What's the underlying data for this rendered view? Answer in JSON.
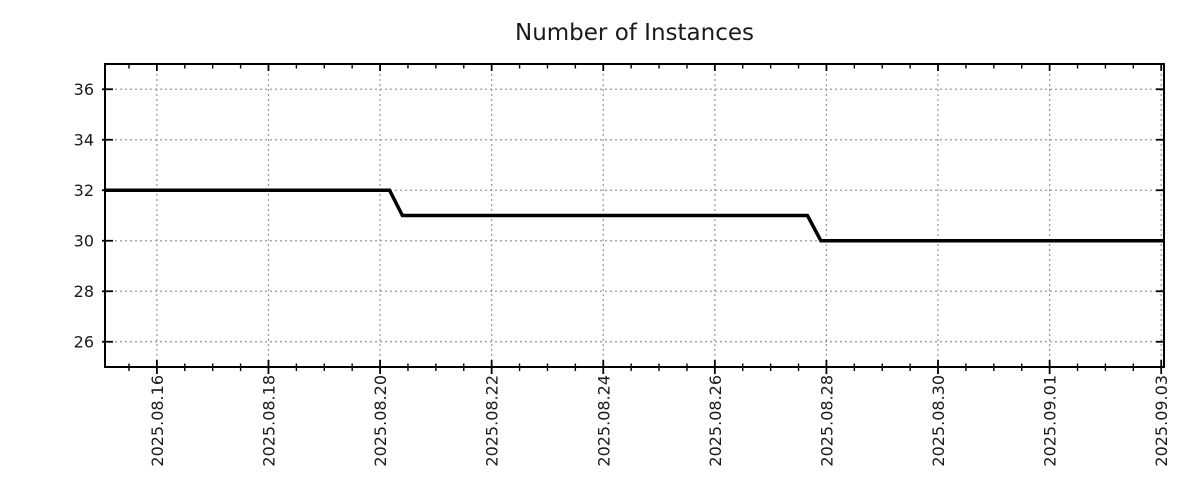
{
  "chart_data": {
    "type": "line",
    "line_style": "step",
    "title": "Number of Instances",
    "legend": "none",
    "grid": "dotted major gridlines",
    "colors": {
      "line": "#000000",
      "axis": "#000000",
      "grid": "#979797",
      "text": "#1a1a1a",
      "background": "#ffffff"
    },
    "x_axis": {
      "kind": "date",
      "epoch": "2025-08-15 00:00",
      "range_days": [
        0.07,
        19.05
      ],
      "minor_tick_step_days": 0.5,
      "major_ticks": [
        {
          "day": 1,
          "label": "2025.08.16"
        },
        {
          "day": 3,
          "label": "2025.08.18"
        },
        {
          "day": 5,
          "label": "2025.08.20"
        },
        {
          "day": 7,
          "label": "2025.08.22"
        },
        {
          "day": 9,
          "label": "2025.08.24"
        },
        {
          "day": 11,
          "label": "2025.08.26"
        },
        {
          "day": 13,
          "label": "2025.08.28"
        },
        {
          "day": 15,
          "label": "2025.08.30"
        },
        {
          "day": 17,
          "label": "2025.09.01"
        },
        {
          "day": 19,
          "label": "2025.09.03"
        }
      ]
    },
    "y_axis": {
      "range": [
        25,
        37
      ],
      "major_ticks": [
        26,
        28,
        30,
        32,
        34,
        36
      ],
      "major_tick_labels": [
        "26",
        "28",
        "30",
        "32",
        "34",
        "36"
      ]
    },
    "series": [
      {
        "name": "instances",
        "points": [
          {
            "day": 0.07,
            "value": 32,
            "approx_time": "2025-08-15 01:40"
          },
          {
            "day": 5.17,
            "value": 32,
            "approx_time": "2025-08-20 04:00"
          },
          {
            "day": 5.4,
            "value": 31,
            "approx_time": "2025-08-20 09:40"
          },
          {
            "day": 12.66,
            "value": 31,
            "approx_time": "2025-08-27 15:50"
          },
          {
            "day": 12.9,
            "value": 30,
            "approx_time": "2025-08-27 21:40"
          },
          {
            "day": 19.05,
            "value": 30,
            "approx_time": "2025-09-03 01:10"
          }
        ]
      }
    ]
  }
}
